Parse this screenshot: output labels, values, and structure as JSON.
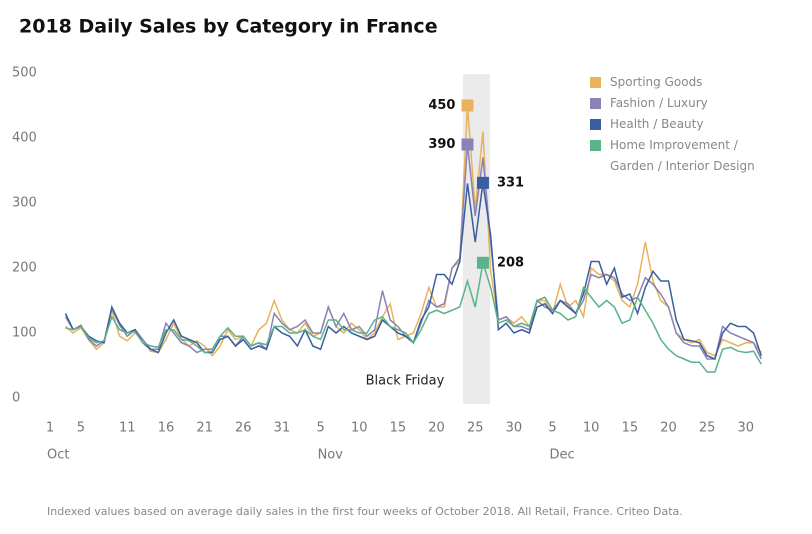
{
  "chart_data": {
    "type": "line",
    "title": "2018 Daily Sales by Category in France",
    "note": "Indexed values based on average daily sales in the first four weeks of October 2018. All Retail, France. Criteo Data.",
    "annotation": "Black Friday",
    "x": [
      3,
      4,
      5,
      6,
      7,
      8,
      9,
      10,
      11,
      12,
      13,
      14,
      15,
      16,
      17,
      18,
      19,
      20,
      21,
      22,
      23,
      24,
      25,
      26,
      27,
      28,
      29,
      30,
      31,
      32,
      33,
      34,
      35,
      36,
      37,
      38,
      39,
      40,
      41,
      42,
      43,
      44,
      45,
      46,
      47,
      48,
      49,
      50,
      51,
      52,
      53,
      54,
      55,
      56,
      57,
      58,
      59,
      60,
      61,
      62,
      63,
      64,
      65,
      66,
      67,
      68,
      69,
      70,
      71,
      72,
      73,
      74,
      75,
      76,
      77,
      78,
      79,
      80,
      81,
      82,
      83,
      84,
      85,
      86,
      87,
      88,
      89,
      90,
      91,
      92,
      93
    ],
    "xlim": [
      1,
      94
    ],
    "xticks": [
      {
        "value": 1,
        "label": "1"
      },
      {
        "value": 5,
        "label": "5"
      },
      {
        "value": 11,
        "label": "11"
      },
      {
        "value": 16,
        "label": "16"
      },
      {
        "value": 21,
        "label": "21"
      },
      {
        "value": 26,
        "label": "26"
      },
      {
        "value": 31,
        "label": "31"
      },
      {
        "value": 36,
        "label": "5"
      },
      {
        "value": 41,
        "label": "10"
      },
      {
        "value": 46,
        "label": "15"
      },
      {
        "value": 51,
        "label": "20"
      },
      {
        "value": 56,
        "label": "25"
      },
      {
        "value": 61,
        "label": "30"
      },
      {
        "value": 66,
        "label": "5"
      },
      {
        "value": 71,
        "label": "10"
      },
      {
        "value": 76,
        "label": "15"
      },
      {
        "value": 81,
        "label": "20"
      },
      {
        "value": 86,
        "label": "25"
      },
      {
        "value": 91,
        "label": "30"
      }
    ],
    "months": [
      {
        "value": 1,
        "label": "Oct"
      },
      {
        "value": 36,
        "label": "Nov"
      },
      {
        "value": 66,
        "label": "Dec"
      }
    ],
    "ylim": [
      0,
      500
    ],
    "yticks": [
      0,
      100,
      200,
      300,
      400,
      500
    ],
    "grid": false,
    "series": [
      {
        "name": "Sporting Goods",
        "color": "#e8b35a",
        "values": [
          110,
          100,
          108,
          90,
          75,
          85,
          135,
          95,
          88,
          100,
          90,
          72,
          70,
          90,
          115,
          90,
          80,
          88,
          80,
          65,
          80,
          105,
          90,
          95,
          80,
          105,
          115,
          150,
          120,
          105,
          100,
          115,
          95,
          100,
          140,
          110,
          100,
          115,
          105,
          90,
          100,
          125,
          145,
          90,
          95,
          100,
          130,
          170,
          140,
          140,
          200,
          210,
          450,
          290,
          410,
          195,
          120,
          125,
          115,
          125,
          110,
          150,
          150,
          130,
          175,
          140,
          150,
          125,
          200,
          190,
          190,
          180,
          150,
          140,
          175,
          240,
          180,
          150,
          140,
          100,
          90,
          85,
          90,
          70,
          65,
          90,
          85,
          80,
          85,
          85,
          70
        ]
      },
      {
        "name": "Fashion / Luxury",
        "color": "#8a83b8",
        "values": [
          125,
          105,
          112,
          90,
          80,
          88,
          138,
          112,
          95,
          105,
          90,
          75,
          75,
          115,
          100,
          85,
          80,
          70,
          75,
          75,
          95,
          95,
          80,
          95,
          80,
          85,
          75,
          130,
          115,
          105,
          110,
          120,
          100,
          100,
          140,
          110,
          130,
          105,
          110,
          95,
          105,
          165,
          120,
          110,
          95,
          85,
          115,
          150,
          140,
          145,
          200,
          215,
          390,
          280,
          370,
          240,
          120,
          125,
          110,
          110,
          105,
          150,
          140,
          135,
          150,
          145,
          130,
          150,
          190,
          185,
          190,
          185,
          160,
          150,
          155,
          185,
          175,
          160,
          140,
          100,
          85,
          80,
          80,
          60,
          60,
          110,
          100,
          95,
          90,
          85,
          60
        ]
      },
      {
        "name": "Health / Beauty",
        "color": "#3a5fa0",
        "values": [
          130,
          105,
          110,
          95,
          88,
          85,
          140,
          115,
          100,
          105,
          85,
          75,
          70,
          100,
          120,
          95,
          90,
          85,
          70,
          70,
          90,
          95,
          80,
          90,
          75,
          80,
          75,
          110,
          100,
          95,
          80,
          105,
          80,
          75,
          110,
          100,
          110,
          100,
          95,
          90,
          95,
          120,
          110,
          100,
          95,
          85,
          120,
          140,
          190,
          190,
          175,
          210,
          330,
          240,
          331,
          250,
          105,
          115,
          100,
          105,
          100,
          140,
          145,
          130,
          150,
          140,
          130,
          160,
          210,
          210,
          175,
          200,
          155,
          160,
          130,
          170,
          195,
          180,
          180,
          120,
          90,
          88,
          85,
          65,
          60,
          100,
          115,
          110,
          110,
          100,
          65
        ]
      },
      {
        "name": "Home Improvement / Garden / Interior Design",
        "color": "#5ab38a",
        "values": [
          108,
          105,
          110,
          92,
          85,
          88,
          125,
          105,
          100,
          102,
          85,
          80,
          78,
          105,
          105,
          90,
          88,
          80,
          70,
          72,
          95,
          108,
          95,
          95,
          80,
          85,
          82,
          110,
          110,
          100,
          100,
          105,
          95,
          90,
          120,
          120,
          105,
          105,
          100,
          100,
          120,
          125,
          110,
          105,
          100,
          85,
          105,
          130,
          135,
          130,
          135,
          140,
          180,
          140,
          208,
          170,
          115,
          120,
          110,
          115,
          110,
          150,
          155,
          135,
          130,
          120,
          125,
          170,
          155,
          140,
          150,
          140,
          115,
          120,
          155,
          135,
          115,
          90,
          75,
          65,
          60,
          55,
          55,
          40,
          40,
          75,
          78,
          72,
          70,
          72,
          52
        ]
      }
    ]
  }
}
